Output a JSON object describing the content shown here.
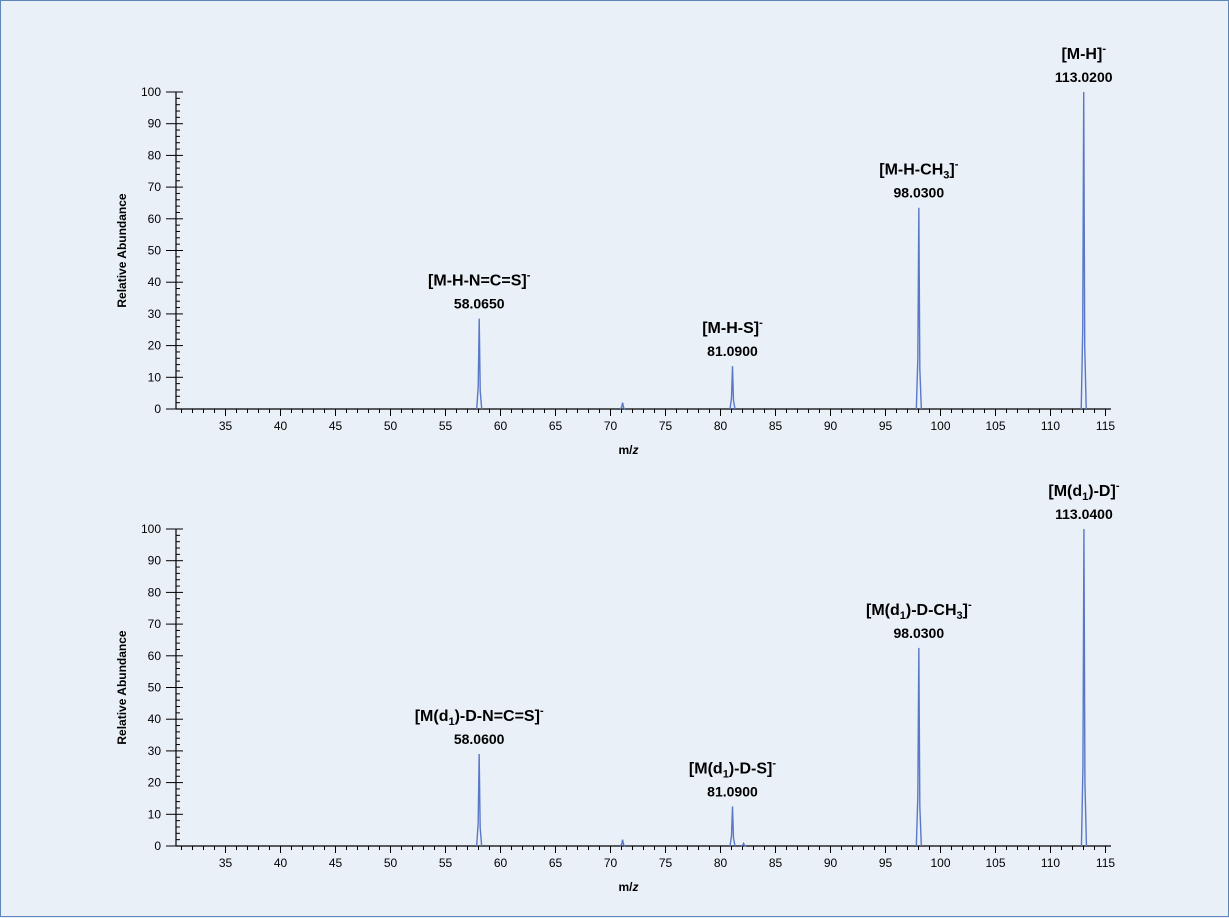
{
  "colors": {
    "background": "#eaf0f8",
    "border": "#5b86b8",
    "spectrum": "#5a78c8",
    "axis": "#000000"
  },
  "chart_data": [
    {
      "type": "line",
      "xlabel_parts": [
        "m/",
        "z"
      ],
      "ylabel": "Relative Abundance",
      "xlim": [
        30.5,
        115.5
      ],
      "ylim": [
        0,
        100
      ],
      "xticks": [
        "35",
        "40",
        "45",
        "50",
        "55",
        "60",
        "65",
        "70",
        "75",
        "80",
        "85",
        "90",
        "95",
        "100",
        "105",
        "110",
        "115"
      ],
      "yticks": [
        "0",
        "10",
        "20",
        "30",
        "40",
        "50",
        "60",
        "70",
        "80",
        "90",
        "100"
      ],
      "grid": false,
      "peaks": [
        {
          "x": 58.065,
          "y": 28.5,
          "label_parts": [
            "[M-H-N=C=S]",
            "-"
          ],
          "value": "58.0650"
        },
        {
          "x": 71.1,
          "y": 2
        },
        {
          "x": 81.09,
          "y": 13.5,
          "label_parts": [
            "[M-H-S]",
            "-"
          ],
          "value": "81.0900"
        },
        {
          "x": 98.03,
          "y": 63.5,
          "label_parts": [
            "[M-H-CH",
            "3",
            "]",
            "-"
          ],
          "value": "98.0300"
        },
        {
          "x": 113.02,
          "y": 100,
          "label_parts": [
            "[M-H]",
            "-"
          ],
          "value": "113.0200"
        }
      ]
    },
    {
      "type": "line",
      "xlabel_parts": [
        "m/",
        "z"
      ],
      "ylabel": "Relative Abundance",
      "xlim": [
        30.5,
        115.5
      ],
      "ylim": [
        0,
        100
      ],
      "xticks": [
        "35",
        "40",
        "45",
        "50",
        "55",
        "60",
        "65",
        "70",
        "75",
        "80",
        "85",
        "90",
        "95",
        "100",
        "105",
        "110",
        "115"
      ],
      "yticks": [
        "0",
        "10",
        "20",
        "30",
        "40",
        "50",
        "60",
        "70",
        "80",
        "90",
        "100"
      ],
      "grid": false,
      "peaks": [
        {
          "x": 58.06,
          "y": 29,
          "label_parts": [
            "[M(d",
            "1",
            ")-D-N=C=S]",
            "-"
          ],
          "value": "58.0600"
        },
        {
          "x": 71.1,
          "y": 2
        },
        {
          "x": 81.09,
          "y": 12.5,
          "label_parts": [
            "[M(d",
            "1",
            ")-D-S]",
            "-"
          ],
          "value": "81.0900"
        },
        {
          "x": 82.1,
          "y": 0.8
        },
        {
          "x": 98.03,
          "y": 62.5,
          "label_parts": [
            "[M(d",
            "1",
            ")-D-CH",
            "3",
            "]",
            "-"
          ],
          "value": "98.0300"
        },
        {
          "x": 113.04,
          "y": 100,
          "label_parts": [
            "[M(d",
            "1",
            ")-D]",
            "-"
          ],
          "value": "113.0400"
        }
      ]
    }
  ]
}
